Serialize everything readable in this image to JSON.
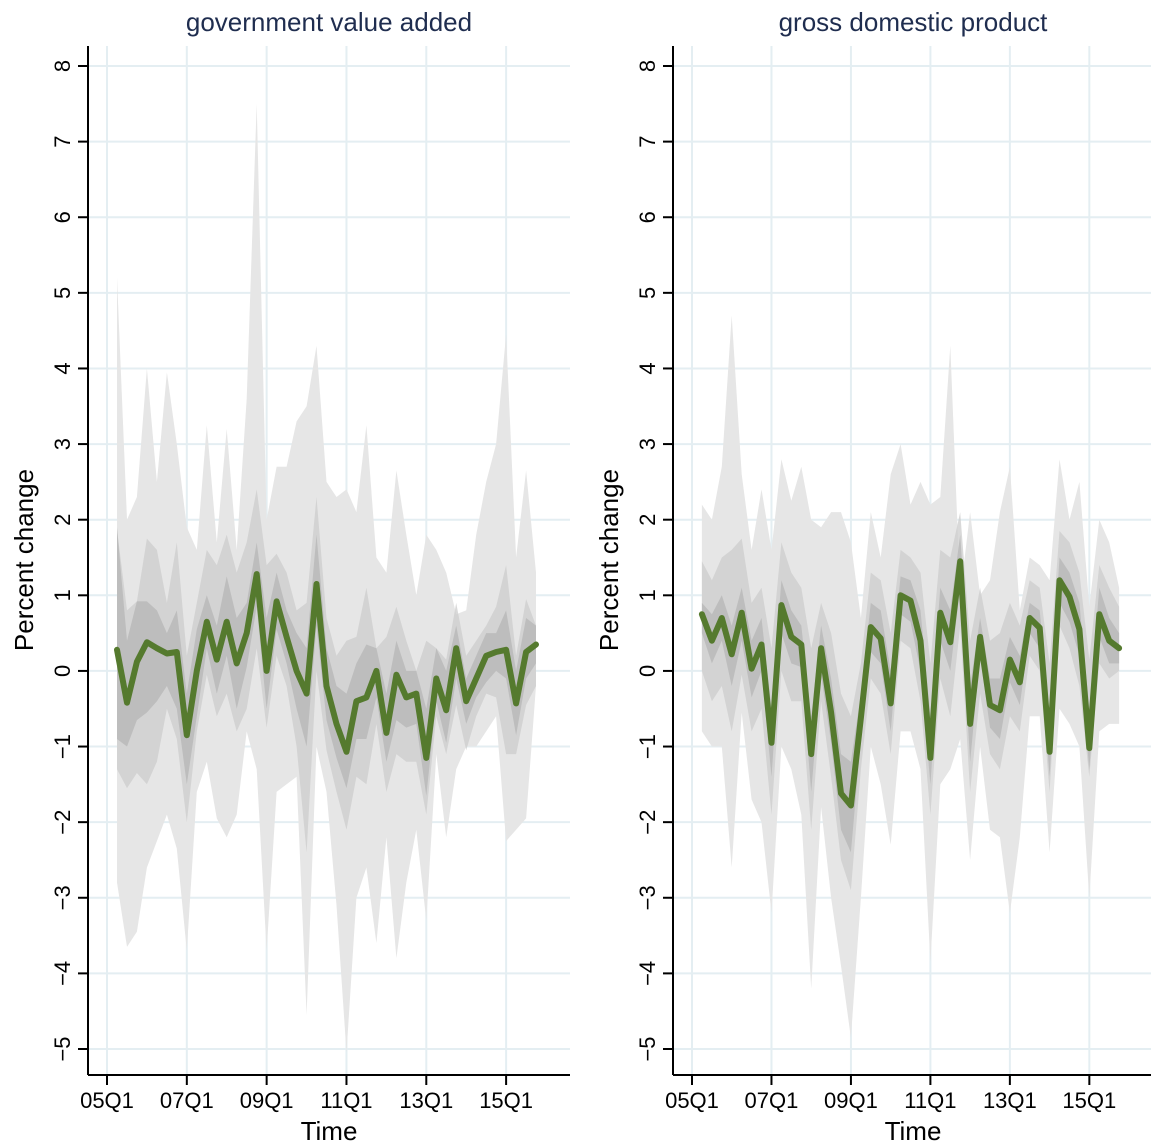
{
  "chart_data": [
    {
      "type": "area",
      "title": "government value added",
      "xlabel": "Time",
      "ylabel": "Percent change",
      "ylim": [
        -5,
        8
      ],
      "yticks": [
        -5,
        -4,
        -3,
        -2,
        -1,
        0,
        1,
        2,
        3,
        4,
        5,
        6,
        7,
        8
      ],
      "ytick_labels": [
        "−5",
        "−4",
        "−3",
        "−2",
        "−1",
        "0",
        "1",
        "2",
        "3",
        "4",
        "5",
        "6",
        "7",
        "8"
      ],
      "xlim": [
        2004.8,
        2016.5
      ],
      "xticks": [
        2005,
        2007,
        2009,
        2011,
        2013,
        2015
      ],
      "xtick_labels": [
        "05Q1",
        "07Q1",
        "09Q1",
        "11Q1",
        "13Q1",
        "15Q1"
      ],
      "x": [
        2005.25,
        2005.5,
        2005.75,
        2006.0,
        2006.25,
        2006.5,
        2006.75,
        2007.0,
        2007.25,
        2007.5,
        2007.75,
        2008.0,
        2008.25,
        2008.5,
        2008.75,
        2009.0,
        2009.25,
        2009.5,
        2009.75,
        2010.0,
        2010.25,
        2010.5,
        2010.75,
        2011.0,
        2011.25,
        2011.5,
        2011.75,
        2012.0,
        2012.25,
        2012.5,
        2012.75,
        2013.0,
        2013.25,
        2013.5,
        2013.75,
        2014.0,
        2014.25,
        2014.5,
        2014.75,
        2015.0,
        2015.25,
        2015.5,
        2015.75
      ],
      "median": [
        0.28,
        -0.42,
        0.12,
        0.38,
        0.3,
        0.23,
        0.25,
        -0.85,
        0.0,
        0.65,
        0.15,
        0.65,
        0.1,
        0.5,
        1.28,
        0.0,
        0.92,
        0.45,
        0.0,
        -0.3,
        1.15,
        -0.2,
        -0.7,
        -1.07,
        -0.4,
        -0.35,
        0.0,
        -0.82,
        -0.05,
        -0.35,
        -0.3,
        -1.15,
        -0.1,
        -0.52,
        0.3,
        -0.4,
        -0.1,
        0.2,
        0.25,
        0.28,
        -0.43,
        0.25,
        0.35
      ],
      "band_outer_upper": [
        5.2,
        2.0,
        2.3,
        4.0,
        2.5,
        3.95,
        3.0,
        1.9,
        1.6,
        3.25,
        1.7,
        3.2,
        1.6,
        3.6,
        7.5,
        2.0,
        2.7,
        2.7,
        3.3,
        3.5,
        4.3,
        2.5,
        2.3,
        2.4,
        2.1,
        3.25,
        1.5,
        1.3,
        2.65,
        1.8,
        1.0,
        1.8,
        1.6,
        1.3,
        0.75,
        0.8,
        1.8,
        2.5,
        3.0,
        4.45,
        1.5,
        2.65,
        1.3
      ],
      "band_outer_lower": [
        -2.8,
        -3.65,
        -3.45,
        -2.6,
        -2.25,
        -1.9,
        -2.35,
        -3.7,
        -1.6,
        -1.2,
        -1.95,
        -2.2,
        -1.9,
        -0.8,
        -1.3,
        -3.7,
        -1.6,
        -1.5,
        -1.4,
        -4.55,
        -1.0,
        -1.6,
        -3.1,
        -5.05,
        -3.0,
        -2.6,
        -3.6,
        -2.2,
        -3.8,
        -2.8,
        -2.1,
        -3.3,
        -1.1,
        -2.2,
        -1.3,
        -1.0,
        -1.0,
        -0.8,
        -0.6,
        -2.25,
        -2.1,
        -1.95,
        -0.2
      ],
      "band_mid_upper": [
        1.87,
        0.8,
        0.92,
        1.75,
        1.6,
        0.9,
        1.7,
        0.2,
        0.9,
        1.6,
        1.4,
        1.8,
        1.3,
        1.7,
        2.4,
        1.4,
        1.55,
        1.3,
        0.8,
        0.9,
        2.3,
        0.7,
        0.2,
        0.4,
        0.45,
        1.1,
        0.3,
        0.45,
        0.85,
        0.4,
        0.0,
        0.4,
        0.3,
        0.15,
        0.9,
        0.2,
        0.4,
        0.6,
        0.85,
        1.4,
        0.2,
        0.95,
        0.6
      ],
      "band_mid_lower": [
        -1.3,
        -1.55,
        -1.35,
        -1.5,
        -1.2,
        -0.5,
        -0.9,
        -2.0,
        -0.8,
        -0.05,
        -0.6,
        -0.3,
        -0.8,
        -0.5,
        0.3,
        -0.75,
        0.2,
        -0.2,
        -1.0,
        -2.4,
        0.0,
        -1.05,
        -1.6,
        -2.1,
        -1.4,
        -1.5,
        -0.7,
        -1.6,
        -1.1,
        -1.2,
        -1.2,
        -1.9,
        -0.6,
        -1.1,
        -0.45,
        -1.05,
        -0.6,
        -0.3,
        -0.35,
        -1.1,
        -1.1,
        -0.45,
        -0.2
      ],
      "band_inner_upper": [
        1.9,
        0.4,
        0.92,
        0.92,
        0.8,
        0.5,
        0.8,
        -0.3,
        0.55,
        1.0,
        0.6,
        1.25,
        0.7,
        0.9,
        1.7,
        0.7,
        1.3,
        0.8,
        0.5,
        0.3,
        1.8,
        0.3,
        -0.2,
        -0.3,
        0.1,
        0.35,
        0.3,
        -0.3,
        0.4,
        0.0,
        0.0,
        -0.5,
        0.3,
        0.0,
        0.6,
        -0.1,
        0.2,
        0.5,
        0.5,
        0.8,
        0.0,
        0.7,
        0.6
      ],
      "band_inner_lower": [
        -0.9,
        -1.0,
        -0.65,
        -0.55,
        -0.4,
        -0.2,
        -0.5,
        -1.5,
        -0.6,
        0.3,
        -0.3,
        0.2,
        -0.5,
        0.05,
        0.85,
        -0.5,
        0.55,
        0.1,
        -0.5,
        -1.0,
        0.6,
        -0.65,
        -1.15,
        -1.55,
        -0.9,
        -0.9,
        -0.35,
        -1.2,
        -0.65,
        -0.75,
        -0.7,
        -1.65,
        -0.4,
        -0.95,
        -0.1,
        -0.7,
        -0.35,
        -0.15,
        0.0,
        -0.1,
        -0.85,
        -0.1,
        0.1
      ],
      "colors": {
        "median": "#557a2e",
        "outer_band": "#e6e6e6",
        "mid_band": "#cccccc",
        "inner_band": "#b3b3b3",
        "grid": "#e4eef2",
        "title": "#1f2d4f"
      }
    },
    {
      "type": "area",
      "title": "gross domestic product",
      "xlabel": "Time",
      "ylabel": "Percent change",
      "ylim": [
        -5,
        8
      ],
      "yticks": [
        -5,
        -4,
        -3,
        -2,
        -1,
        0,
        1,
        2,
        3,
        4,
        5,
        6,
        7,
        8
      ],
      "ytick_labels": [
        "−5",
        "−4",
        "−3",
        "−2",
        "−1",
        "0",
        "1",
        "2",
        "3",
        "4",
        "5",
        "6",
        "7",
        "8"
      ],
      "xlim": [
        2004.8,
        2016.5
      ],
      "xticks": [
        2005,
        2007,
        2009,
        2011,
        2013,
        2015
      ],
      "xtick_labels": [
        "05Q1",
        "07Q1",
        "09Q1",
        "11Q1",
        "13Q1",
        "15Q1"
      ],
      "x": [
        2005.25,
        2005.5,
        2005.75,
        2006.0,
        2006.25,
        2006.5,
        2006.75,
        2007.0,
        2007.25,
        2007.5,
        2007.75,
        2008.0,
        2008.25,
        2008.5,
        2008.75,
        2009.0,
        2009.25,
        2009.5,
        2009.75,
        2010.0,
        2010.25,
        2010.5,
        2010.75,
        2011.0,
        2011.25,
        2011.5,
        2011.75,
        2012.0,
        2012.25,
        2012.5,
        2012.75,
        2013.0,
        2013.25,
        2013.5,
        2013.75,
        2014.0,
        2014.25,
        2014.5,
        2014.75,
        2015.0,
        2015.25,
        2015.5,
        2015.75
      ],
      "median": [
        0.75,
        0.4,
        0.7,
        0.22,
        0.77,
        0.03,
        0.35,
        -0.95,
        0.87,
        0.45,
        0.35,
        -1.1,
        0.3,
        -0.55,
        -1.62,
        -1.78,
        -0.62,
        0.58,
        0.43,
        -0.43,
        1.0,
        0.93,
        0.4,
        -1.15,
        0.77,
        0.38,
        1.45,
        -0.7,
        0.45,
        -0.45,
        -0.52,
        0.15,
        -0.15,
        0.7,
        0.57,
        -1.07,
        1.2,
        0.98,
        0.55,
        -1.02,
        0.75,
        0.4,
        0.3
      ],
      "band_outer_upper": [
        2.2,
        2.0,
        2.7,
        4.7,
        2.6,
        1.6,
        2.4,
        1.6,
        2.8,
        2.25,
        2.7,
        2.0,
        1.9,
        2.1,
        2.1,
        1.7,
        0.7,
        2.1,
        1.5,
        2.6,
        3.0,
        2.2,
        2.5,
        2.2,
        2.3,
        4.3,
        1.0,
        2.1,
        1.0,
        1.2,
        2.1,
        2.7,
        0.8,
        1.5,
        1.4,
        1.2,
        2.8,
        2.0,
        2.5,
        0.85,
        2.0,
        1.7,
        1.1
      ],
      "band_outer_lower": [
        -0.8,
        -1.0,
        -1.0,
        -2.6,
        -0.55,
        -1.7,
        -2.0,
        -3.2,
        -1.0,
        -1.3,
        -1.9,
        -4.2,
        -1.8,
        -3.0,
        -3.9,
        -4.85,
        -3.0,
        -1.0,
        -1.5,
        -2.3,
        -0.8,
        -0.8,
        -1.3,
        -3.85,
        -1.5,
        -1.3,
        -0.9,
        -2.5,
        -1.0,
        -2.1,
        -2.2,
        -3.2,
        -2.2,
        -0.6,
        -0.6,
        -2.4,
        -0.5,
        -0.7,
        -1.0,
        -3.0,
        -0.8,
        -0.7,
        -0.7
      ],
      "band_mid_upper": [
        1.45,
        1.2,
        1.5,
        1.6,
        1.75,
        0.9,
        1.1,
        0.3,
        1.7,
        1.3,
        1.1,
        0.3,
        0.9,
        0.5,
        -0.3,
        -0.6,
        0.1,
        1.3,
        1.2,
        0.5,
        1.6,
        1.5,
        1.3,
        0.1,
        1.6,
        1.5,
        2.1,
        0.4,
        1.1,
        0.4,
        0.5,
        0.9,
        0.6,
        1.2,
        1.1,
        0.1,
        1.85,
        1.7,
        1.3,
        0.15,
        1.4,
        1.1,
        0.85
      ],
      "band_mid_lower": [
        0.0,
        -0.4,
        -0.2,
        -0.8,
        -0.05,
        -0.8,
        -0.5,
        -1.9,
        0.0,
        -0.4,
        -0.4,
        -2.1,
        -0.4,
        -1.4,
        -2.5,
        -2.9,
        -1.3,
        -0.1,
        -0.3,
        -1.1,
        0.4,
        0.3,
        -0.4,
        -1.9,
        -0.1,
        -0.6,
        0.6,
        -1.6,
        -0.3,
        -1.1,
        -1.3,
        -0.6,
        -0.8,
        0.2,
        0.0,
        -1.6,
        0.6,
        0.3,
        -0.2,
        -1.4,
        0.1,
        -0.1,
        0.0
      ],
      "band_inner_upper": [
        0.9,
        0.75,
        1.0,
        0.6,
        1.1,
        0.4,
        0.7,
        -0.5,
        1.2,
        0.8,
        0.6,
        -0.6,
        0.6,
        -0.1,
        -1.1,
        -1.2,
        -0.3,
        0.9,
        0.8,
        0.0,
        1.25,
        1.2,
        0.8,
        -0.6,
        1.1,
        0.8,
        1.8,
        -0.2,
        0.7,
        -0.1,
        -0.1,
        0.45,
        0.2,
        0.9,
        0.8,
        -0.6,
        1.5,
        1.3,
        0.9,
        -0.5,
        1.1,
        0.7,
        0.5
      ],
      "band_inner_lower": [
        0.5,
        0.1,
        0.4,
        -0.2,
        0.4,
        -0.35,
        0.0,
        -1.4,
        0.5,
        0.1,
        0.05,
        -1.6,
        -0.05,
        -0.95,
        -2.1,
        -2.4,
        -0.9,
        0.25,
        0.1,
        -0.8,
        0.75,
        0.65,
        0.0,
        -1.5,
        0.4,
        0.0,
        1.1,
        -1.2,
        0.2,
        -0.75,
        -0.9,
        -0.15,
        -0.45,
        0.5,
        0.3,
        -1.4,
        0.9,
        0.65,
        0.2,
        -1.3,
        0.45,
        0.1,
        0.1
      ],
      "colors": {
        "median": "#557a2e",
        "outer_band": "#e6e6e6",
        "mid_band": "#cccccc",
        "inner_band": "#b3b3b3",
        "grid": "#e4eef2",
        "title": "#1f2d4f"
      }
    }
  ]
}
